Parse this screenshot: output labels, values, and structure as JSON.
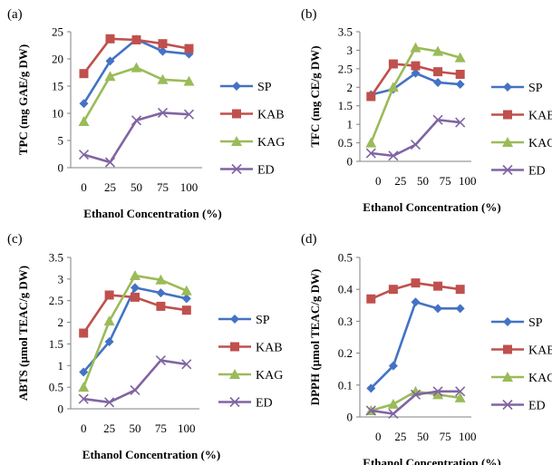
{
  "chart_data": [
    {
      "panel_label": "(a)",
      "type": "line",
      "title": "",
      "xlabel": "Ethanol Concentration (%)",
      "ylabel": "TPC (mg GAE/g DW)",
      "categories": [
        "0",
        "25",
        "50",
        "75",
        "100"
      ],
      "ylim": [
        0,
        25
      ],
      "yticks": [
        "0",
        "5",
        "10",
        "15",
        "20",
        "25"
      ],
      "grid": false,
      "legend_position": "right",
      "series": [
        {
          "name": "SP",
          "color": "#4472C4",
          "marker": "diamond",
          "values": [
            11.8,
            19.6,
            23.6,
            21.4,
            20.9
          ]
        },
        {
          "name": "KAB",
          "color": "#C0504D",
          "marker": "square",
          "values": [
            17.3,
            23.7,
            23.5,
            22.8,
            21.9
          ]
        },
        {
          "name": "KAG",
          "color": "#9BBB59",
          "marker": "triangle",
          "values": [
            8.5,
            16.8,
            18.4,
            16.2,
            15.9
          ]
        },
        {
          "name": "ED",
          "color": "#8064A2",
          "marker": "x",
          "values": [
            2.4,
            1.0,
            8.7,
            10.1,
            9.8
          ]
        }
      ]
    },
    {
      "panel_label": "(b)",
      "type": "line",
      "title": "",
      "xlabel": "Ethanol Concentration (%)",
      "ylabel": "TFC (mg CE/g DW)",
      "categories": [
        "0",
        "25",
        "50",
        "75",
        "100"
      ],
      "ylim": [
        0,
        3.5
      ],
      "yticks": [
        "0",
        "0.5",
        "1",
        "1.5",
        "2",
        "2.5",
        "3",
        "3.5"
      ],
      "grid": false,
      "legend_position": "right",
      "series": [
        {
          "name": "SP",
          "color": "#4472C4",
          "marker": "diamond",
          "values": [
            1.8,
            1.95,
            2.38,
            2.13,
            2.08
          ]
        },
        {
          "name": "KAB",
          "color": "#C0504D",
          "marker": "square",
          "values": [
            1.75,
            2.63,
            2.58,
            2.42,
            2.35
          ]
        },
        {
          "name": "KAG",
          "color": "#9BBB59",
          "marker": "triangle",
          "values": [
            0.5,
            2.0,
            3.07,
            2.97,
            2.8
          ]
        },
        {
          "name": "ED",
          "color": "#8064A2",
          "marker": "x",
          "values": [
            0.22,
            0.15,
            0.45,
            1.12,
            1.05
          ]
        }
      ]
    },
    {
      "panel_label": "(c)",
      "type": "line",
      "title": "",
      "xlabel": "Ethanol Concentration (%)",
      "ylabel": "ABTS (µmol TEAC/g DW)",
      "categories": [
        "0",
        "25",
        "50",
        "75",
        "100"
      ],
      "ylim": [
        0,
        3.5
      ],
      "yticks": [
        "0",
        "0.5",
        "1",
        "1.5",
        "2",
        "2.5",
        "3",
        "3.5"
      ],
      "grid": false,
      "legend_position": "right",
      "series": [
        {
          "name": "SP",
          "color": "#4472C4",
          "marker": "diamond",
          "values": [
            0.85,
            1.55,
            2.8,
            2.68,
            2.55
          ]
        },
        {
          "name": "KAB",
          "color": "#C0504D",
          "marker": "square",
          "values": [
            1.75,
            2.63,
            2.58,
            2.37,
            2.28
          ]
        },
        {
          "name": "KAG",
          "color": "#9BBB59",
          "marker": "triangle",
          "values": [
            0.5,
            2.03,
            3.08,
            2.98,
            2.73
          ]
        },
        {
          "name": "ED",
          "color": "#8064A2",
          "marker": "x",
          "values": [
            0.23,
            0.15,
            0.43,
            1.12,
            1.03
          ]
        }
      ]
    },
    {
      "panel_label": "(d)",
      "type": "line",
      "title": "",
      "xlabel": "Ethanol Concentration (%)",
      "ylabel": "DPPH (µmol TEAC/g DW)",
      "categories": [
        "0",
        "25",
        "50",
        "75",
        "100"
      ],
      "ylim": [
        0,
        0.5
      ],
      "yticks": [
        "0",
        "0.1",
        "0.2",
        "0.3",
        "0.4",
        "0.5"
      ],
      "grid": false,
      "legend_position": "right",
      "series": [
        {
          "name": "SP",
          "color": "#4472C4",
          "marker": "diamond",
          "values": [
            0.09,
            0.16,
            0.36,
            0.34,
            0.34
          ]
        },
        {
          "name": "KAB",
          "color": "#C0504D",
          "marker": "square",
          "values": [
            0.37,
            0.4,
            0.42,
            0.41,
            0.4
          ]
        },
        {
          "name": "KAG",
          "color": "#9BBB59",
          "marker": "triangle",
          "values": [
            0.02,
            0.04,
            0.08,
            0.07,
            0.06
          ]
        },
        {
          "name": "ED",
          "color": "#8064A2",
          "marker": "x",
          "values": [
            0.02,
            0.01,
            0.07,
            0.08,
            0.08
          ]
        }
      ]
    }
  ]
}
